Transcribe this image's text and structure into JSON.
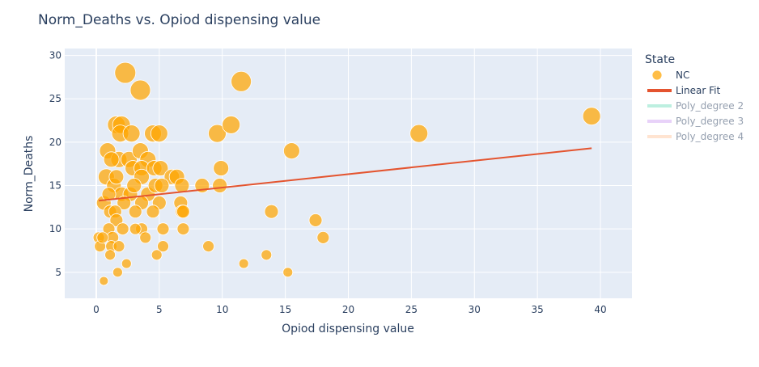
{
  "chart_data": {
    "type": "scatter",
    "title": "Norm_Deaths vs. Opiod dispensing value",
    "xlabel": "Opiod dispensing value",
    "ylabel": "Norm_Deaths",
    "xlim": [
      -2.5,
      42.5
    ],
    "ylim": [
      2,
      30.8
    ],
    "xticks": [
      0,
      5,
      10,
      15,
      20,
      25,
      30,
      35,
      40
    ],
    "yticks": [
      5,
      10,
      15,
      20,
      25,
      30
    ],
    "grid": true,
    "legend_position": "right",
    "legend_title": "State",
    "series": [
      {
        "name": "NC",
        "color": "#FFA500",
        "points": [
          [
            0.2,
            9,
            14
          ],
          [
            0.3,
            8,
            14
          ],
          [
            0.5,
            9,
            14
          ],
          [
            0.6,
            13,
            18
          ],
          [
            0.6,
            4,
            11
          ],
          [
            0.8,
            16,
            20
          ],
          [
            0.9,
            19,
            20
          ],
          [
            1.0,
            10,
            15
          ],
          [
            1.0,
            14,
            17
          ],
          [
            1.1,
            12,
            16
          ],
          [
            1.2,
            18,
            19
          ],
          [
            1.2,
            8,
            14
          ],
          [
            1.1,
            7,
            13
          ],
          [
            1.3,
            9,
            15
          ],
          [
            1.4,
            15,
            18
          ],
          [
            1.5,
            12,
            16
          ],
          [
            1.6,
            22,
            22
          ],
          [
            1.6,
            16,
            18
          ],
          [
            1.6,
            11,
            16
          ],
          [
            1.7,
            5,
            12
          ],
          [
            1.8,
            18,
            20
          ],
          [
            1.8,
            8,
            14
          ],
          [
            1.9,
            21,
            21
          ],
          [
            2.0,
            22,
            22
          ],
          [
            2.0,
            14,
            18
          ],
          [
            2.1,
            10,
            15
          ],
          [
            2.2,
            13,
            17
          ],
          [
            2.3,
            28,
            26
          ],
          [
            2.4,
            6,
            12
          ],
          [
            2.6,
            18,
            20
          ],
          [
            2.7,
            14,
            18
          ],
          [
            2.8,
            21,
            21
          ],
          [
            2.9,
            17,
            19
          ],
          [
            3.0,
            15,
            18
          ],
          [
            3.1,
            12,
            16
          ],
          [
            3.1,
            10,
            14
          ],
          [
            3.5,
            26,
            25
          ],
          [
            3.5,
            19,
            20
          ],
          [
            3.6,
            17,
            19
          ],
          [
            3.6,
            16,
            19
          ],
          [
            3.6,
            13,
            17
          ],
          [
            3.6,
            10,
            15
          ],
          [
            3.9,
            9,
            14
          ],
          [
            4.1,
            18,
            20
          ],
          [
            4.1,
            14,
            18
          ],
          [
            4.5,
            21,
            21
          ],
          [
            4.5,
            12,
            16
          ],
          [
            4.6,
            17,
            19
          ],
          [
            4.7,
            15,
            18
          ],
          [
            4.8,
            7,
            13
          ],
          [
            5.0,
            21,
            21
          ],
          [
            5.0,
            13,
            17
          ],
          [
            5.1,
            17,
            19
          ],
          [
            5.2,
            15,
            18
          ],
          [
            5.3,
            10,
            15
          ],
          [
            5.3,
            8,
            14
          ],
          [
            6.0,
            16,
            19
          ],
          [
            6.4,
            16,
            19
          ],
          [
            6.7,
            13,
            17
          ],
          [
            6.8,
            12,
            16
          ],
          [
            6.8,
            15,
            18
          ],
          [
            6.9,
            10,
            15
          ],
          [
            6.9,
            12,
            16
          ],
          [
            8.4,
            15,
            18
          ],
          [
            8.9,
            8,
            14
          ],
          [
            9.6,
            21,
            22
          ],
          [
            9.8,
            15,
            18
          ],
          [
            9.9,
            17,
            19
          ],
          [
            10.7,
            22,
            22
          ],
          [
            11.5,
            27,
            25
          ],
          [
            11.7,
            6,
            12
          ],
          [
            13.5,
            7,
            13
          ],
          [
            13.9,
            12,
            17
          ],
          [
            15.2,
            5,
            12
          ],
          [
            15.5,
            19,
            20
          ],
          [
            17.4,
            11,
            16
          ],
          [
            18.0,
            9,
            15
          ],
          [
            25.6,
            21,
            22
          ],
          [
            39.3,
            23,
            22
          ]
        ]
      }
    ],
    "linear_fit": {
      "name": "Linear Fit",
      "color": "#E4542F",
      "x": [
        0.2,
        39.3
      ],
      "y": [
        13.25,
        19.3
      ]
    },
    "legend": [
      {
        "name": "NC",
        "kind": "marker",
        "color": "#FFA500",
        "enabled": true
      },
      {
        "name": "Linear Fit",
        "kind": "line",
        "color": "#E4542F",
        "enabled": true
      },
      {
        "name": "Poly_degree 2",
        "kind": "line",
        "color": "#7EE0C2",
        "enabled": false
      },
      {
        "name": "Poly_degree 3",
        "kind": "line",
        "color": "#D3A6F5",
        "enabled": false
      },
      {
        "name": "Poly_degree 4",
        "kind": "line",
        "color": "#FFCBA4",
        "enabled": false
      }
    ]
  }
}
